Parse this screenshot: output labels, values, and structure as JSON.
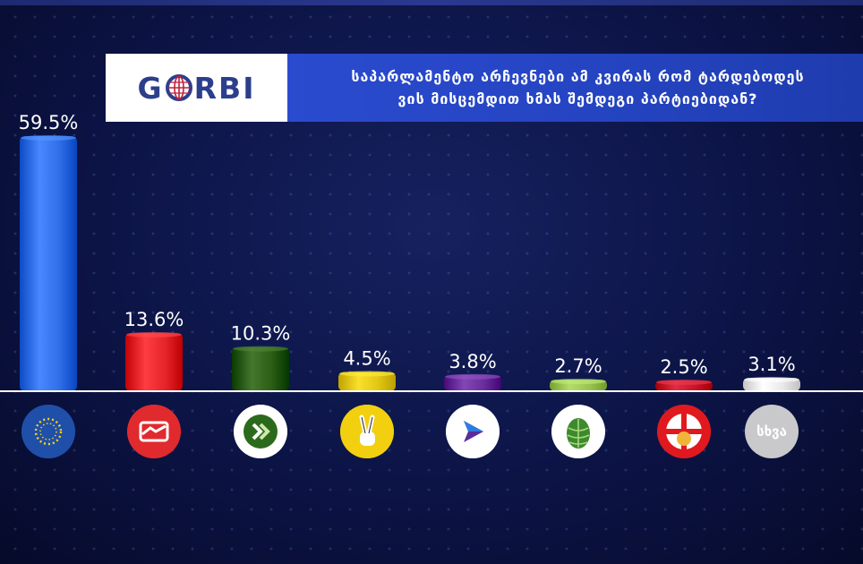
{
  "header": {
    "logo_text_left": "G",
    "logo_text_right": "RBI",
    "title_line1": "საპარლამენტო არჩევნები ამ კვირას რომ ტარდებოდეს",
    "title_line2": "ვის მისცემდით ხმას შემდეგი პარტიებიდან?"
  },
  "colors": {
    "background": "#0c1446",
    "banner": "#2f4fd6",
    "baseline": "#ffffff"
  },
  "chart_data": {
    "type": "bar",
    "title": "საპარლამენტო არჩევნები ამ კვირას რომ ტარდებოდეს ვის მისცემდით ხმას შემდეგი პარტიებიდან?",
    "xlabel": "",
    "ylabel": "",
    "ylim": [
      0,
      60
    ],
    "grid": false,
    "values": [
      59.5,
      13.6,
      10.3,
      4.5,
      3.8,
      2.7,
      2.5,
      3.1
    ],
    "labels": [
      "59.5%",
      "13.6%",
      "10.3%",
      "4.5%",
      "3.8%",
      "2.7%",
      "2.5%",
      "3.1%"
    ],
    "bar_colors": [
      "#2f6ee8",
      "#e5242a",
      "#2b5e14",
      "#e2c614",
      "#6a2d9c",
      "#9ac452",
      "#c8142a",
      "#e8e8ea"
    ],
    "icons": [
      {
        "name": "georgian-dream-icon",
        "bg": "#1f4fa8"
      },
      {
        "name": "handshake-icon",
        "bg": "#e02a2e"
      },
      {
        "name": "double-chevron-icon",
        "bg": "#ffffff"
      },
      {
        "name": "victory-hand-icon",
        "bg": "#f2d00f"
      },
      {
        "name": "play-arrow-icon",
        "bg": "#ffffff"
      },
      {
        "name": "pine-cone-icon",
        "bg": "#ffffff"
      },
      {
        "name": "crossed-flag-icon",
        "bg": "#e0191f"
      },
      {
        "name": "other-icon",
        "bg": "#c9c9cc",
        "text": "სხვა"
      }
    ]
  }
}
